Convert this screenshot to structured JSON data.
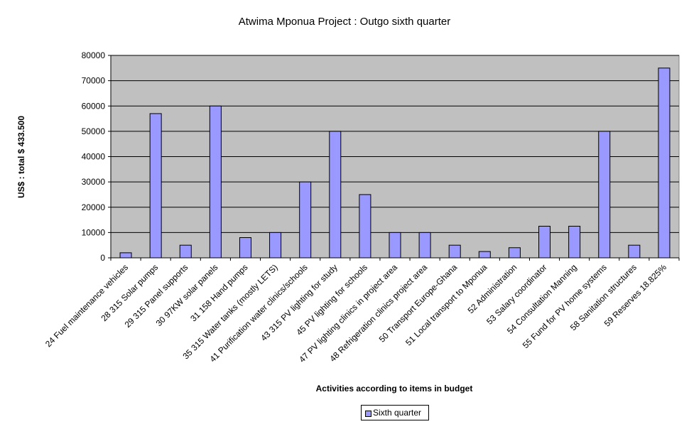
{
  "chart_data": {
    "type": "bar",
    "title": "Atwima Mponua Project : Outgo sixth quarter",
    "xlabel": "Activities according to items in budget",
    "ylabel": "US$ : total $ 433.500",
    "ylim": [
      0,
      80000
    ],
    "yticks": [
      0,
      10000,
      20000,
      30000,
      40000,
      50000,
      60000,
      70000,
      80000
    ],
    "grid": true,
    "legend_position": "bottom",
    "colors": {
      "bar": "#9999ff",
      "plot_bg": "#c0c0c0"
    },
    "categories": [
      "24 Fuel maintenance vehicles",
      "28 315 Solar pumps",
      "29 315 Panel supports",
      "30 97KW solar panels",
      "31 158 Hand pumps",
      "35 315 Water tanks (mostly LETS)",
      "41 Purification water clinics/schools",
      "43 315 PV lighting for study",
      "45 PV lighting for schools",
      "47 PV lighting clinics in project area",
      "48 Refrigeration clinics project area",
      "50 Transport Europe-Ghana",
      "51 Local transport to Mponua",
      "52 Administration",
      "53 Salary coordinator",
      "54 Consultation Manning",
      "55 Fund for PV home systems",
      "58 Sanitation structures",
      "59 Reserves 18.825%"
    ],
    "series": [
      {
        "name": "Sixth quarter",
        "values": [
          2000,
          57000,
          5000,
          60000,
          8000,
          10000,
          30000,
          50000,
          25000,
          10000,
          10000,
          5000,
          2500,
          4000,
          12500,
          12500,
          50000,
          5000,
          75000
        ]
      }
    ]
  }
}
